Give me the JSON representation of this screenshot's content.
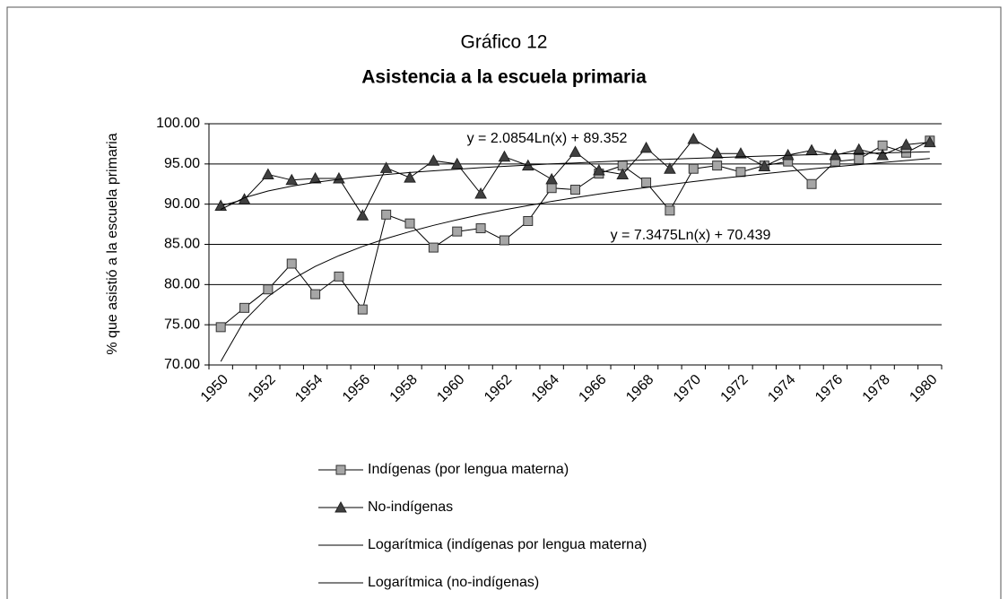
{
  "chart_data": {
    "type": "line",
    "title": "Gráfico 12",
    "subtitle": "Asistencia a la escuela primaria",
    "y_label": "% que asistió a la escuela primaria",
    "annotations": [
      "y = 2.0854Ln(x) + 89.352",
      "y = 7.3475Ln(x) + 70.439"
    ],
    "categories": [
      "1950",
      null,
      "1952",
      null,
      "1954",
      null,
      "1956",
      null,
      "1958",
      null,
      "1960",
      null,
      "1962",
      null,
      "1964",
      null,
      "1966",
      null,
      "1968",
      null,
      "1970",
      null,
      "1972",
      null,
      "1974",
      null,
      "1976",
      null,
      "1978",
      null,
      "1980"
    ],
    "series": [
      {
        "name": "Indígenas (por lengua materna)",
        "color": "#000000",
        "marker": "square",
        "marker_color": "#a6a6a6",
        "values": [
          74.7,
          77.1,
          79.4,
          82.6,
          78.8,
          81.0,
          76.9,
          88.7,
          87.6,
          84.6,
          86.6,
          87.0,
          85.5,
          87.9,
          92.0,
          91.8,
          93.8,
          94.8,
          92.7,
          89.2,
          94.4,
          94.8,
          94.0,
          94.8,
          95.3,
          92.5,
          95.3,
          95.6,
          97.3,
          96.4,
          97.9
        ]
      },
      {
        "name": "No-indígenas",
        "color": "#000000",
        "marker": "triangle",
        "marker_color": "#404040",
        "values": [
          89.8,
          90.6,
          93.7,
          93.0,
          93.2,
          93.2,
          88.6,
          94.5,
          93.3,
          95.4,
          95.0,
          91.3,
          95.9,
          94.8,
          93.1,
          96.5,
          94.2,
          93.7,
          97.0,
          94.4,
          98.1,
          96.3,
          96.3,
          94.7,
          96.1,
          96.7,
          96.1,
          96.8,
          96.1,
          97.4,
          97.7
        ]
      },
      {
        "name": "Logarítmica (indígenas por lengua materna)",
        "color": "#000000",
        "marker": "none",
        "values": [
          70.44,
          75.53,
          78.51,
          80.62,
          82.26,
          83.6,
          84.74,
          85.72,
          86.58,
          87.36,
          88.06,
          88.7,
          89.29,
          89.83,
          90.34,
          90.81,
          91.26,
          91.68,
          92.07,
          92.45,
          92.81,
          93.15,
          93.47,
          93.79,
          94.09,
          94.38,
          94.66,
          94.92,
          95.18,
          95.43,
          95.67
        ]
      },
      {
        "name": "Logarítmica (no-indígenas)",
        "color": "#000000",
        "marker": "none",
        "values": [
          89.35,
          90.8,
          91.64,
          92.24,
          92.71,
          93.09,
          93.41,
          93.69,
          93.93,
          94.15,
          94.35,
          94.53,
          94.7,
          94.86,
          95.0,
          95.13,
          95.26,
          95.38,
          95.49,
          95.6,
          95.7,
          95.8,
          95.89,
          95.98,
          96.06,
          96.15,
          96.23,
          96.3,
          96.37,
          96.44,
          96.51
        ]
      }
    ],
    "ylim": [
      70,
      100
    ],
    "yticks": [
      {
        "value": 70,
        "label": "70.00"
      },
      {
        "value": 75,
        "label": "75.00"
      },
      {
        "value": 80,
        "label": "80.00"
      },
      {
        "value": 85,
        "label": "85.00"
      },
      {
        "value": 90,
        "label": "90.00"
      },
      {
        "value": 95,
        "label": "95.00"
      },
      {
        "value": 100,
        "label": "100.00"
      }
    ],
    "grid": true,
    "legend": "bottom"
  }
}
